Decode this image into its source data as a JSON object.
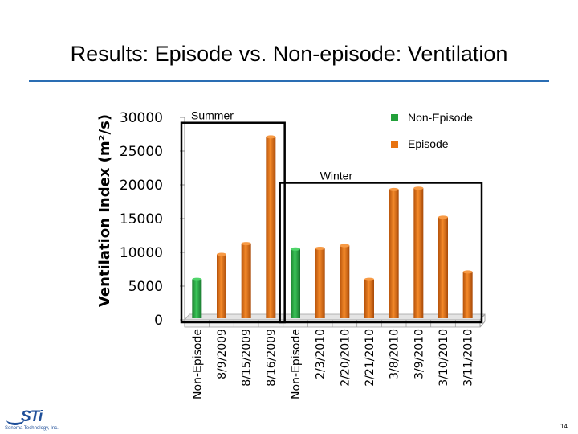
{
  "slide": {
    "title": "Results:  Episode vs. Non-episode:  Ventilation",
    "page_number": "14",
    "logo": {
      "mark": "STi",
      "text": "Sonoma Technology, Inc."
    }
  },
  "colors": {
    "non_episode": "#22a03a",
    "episode": "#e8720f",
    "title_rule": "#2a6db3",
    "logo": "#1f4f99"
  },
  "chart_data": {
    "type": "bar",
    "ylabel": "Ventilation Index (m²/s)",
    "ylim": [
      0,
      30000
    ],
    "yticks": [
      0,
      5000,
      10000,
      15000,
      20000,
      25000,
      30000
    ],
    "categories": [
      "Non-Episode",
      "8/9/2009",
      "8/15/2009",
      "8/16/2009",
      "Non-Episode",
      "2/3/2010",
      "2/20/2010",
      "2/21/2010",
      "3/8/2010",
      "3/9/2010",
      "3/10/2010",
      "3/11/2010"
    ],
    "values": [
      6000,
      9700,
      11300,
      27100,
      10500,
      10600,
      11000,
      6000,
      19300,
      19500,
      15200,
      7100
    ],
    "series_index": [
      0,
      1,
      1,
      1,
      0,
      1,
      1,
      1,
      1,
      1,
      1,
      1
    ],
    "legend": [
      {
        "name": "Non-Episode",
        "color": "#22a03a"
      },
      {
        "name": "Episode",
        "color": "#e8720f"
      }
    ],
    "groups": [
      {
        "label": "Summer",
        "from": 0,
        "to": 3,
        "top_value": 29200
      },
      {
        "label": "Winter",
        "from": 4,
        "to": 11,
        "top_value": 20300
      }
    ]
  }
}
